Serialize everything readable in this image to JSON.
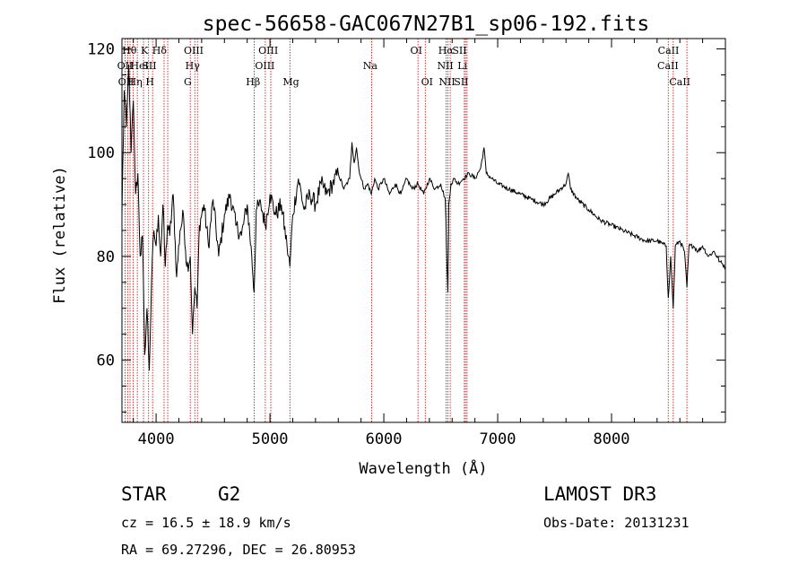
{
  "chart_data": {
    "type": "line",
    "title": "spec-56658-GAC067N27B1_sp06-192.fits",
    "xlabel": "Wavelength (Å)",
    "ylabel": "Flux (relative)",
    "xlim": [
      3700,
      9000
    ],
    "ylim": [
      48,
      122
    ],
    "xticks": [
      4000,
      5000,
      6000,
      7000,
      8000
    ],
    "yticks": [
      60,
      80,
      100,
      120
    ],
    "x_minor_step": 200,
    "y_minor_step": 5,
    "spectrum": {
      "name": "flux",
      "x": [
        3700,
        3720,
        3740,
        3760,
        3780,
        3800,
        3820,
        3840,
        3860,
        3880,
        3900,
        3920,
        3940,
        3960,
        3980,
        4000,
        4020,
        4040,
        4060,
        4080,
        4100,
        4120,
        4150,
        4180,
        4210,
        4240,
        4270,
        4300,
        4320,
        4340,
        4360,
        4380,
        4420,
        4460,
        4500,
        4550,
        4600,
        4650,
        4700,
        4750,
        4800,
        4840,
        4861,
        4880,
        4920,
        4960,
        5000,
        5050,
        5100,
        5150,
        5175,
        5200,
        5250,
        5300,
        5350,
        5400,
        5450,
        5500,
        5550,
        5600,
        5650,
        5700,
        5720,
        5740,
        5760,
        5780,
        5800,
        5830,
        5860,
        5890,
        5920,
        5950,
        6000,
        6050,
        6100,
        6150,
        6200,
        6250,
        6300,
        6350,
        6400,
        6450,
        6500,
        6540,
        6555,
        6563,
        6570,
        6590,
        6620,
        6650,
        6700,
        6750,
        6800,
        6850,
        6880,
        6900,
        6950,
        7000,
        7100,
        7200,
        7300,
        7400,
        7500,
        7600,
        7620,
        7640,
        7700,
        7800,
        7900,
        8000,
        8100,
        8200,
        8300,
        8400,
        8480,
        8498,
        8520,
        8542,
        8560,
        8600,
        8640,
        8662,
        8680,
        8720,
        8760,
        8800,
        8850,
        8900,
        8950,
        9000
      ],
      "y": [
        88,
        112,
        105,
        117,
        100,
        110,
        92,
        96,
        80,
        84,
        61,
        70,
        58,
        75,
        85,
        82,
        88,
        80,
        90,
        78,
        86,
        84,
        92,
        76,
        85,
        88,
        78,
        80,
        65,
        74,
        70,
        86,
        90,
        82,
        91,
        80,
        88,
        92,
        86,
        84,
        90,
        80,
        73,
        89,
        90,
        86,
        92,
        88,
        90,
        82,
        78,
        88,
        95,
        89,
        92,
        90,
        94,
        92,
        94,
        96,
        93,
        95,
        102,
        98,
        101,
        97,
        95,
        93,
        94,
        92,
        95,
        93,
        95,
        92,
        94,
        92,
        95,
        93,
        94,
        92,
        95,
        93,
        94,
        91,
        78,
        73,
        90,
        94,
        95,
        94,
        95,
        96,
        95,
        97,
        101,
        96,
        95,
        94,
        93,
        92,
        91,
        90,
        92,
        94,
        96,
        93,
        91,
        89,
        87,
        86,
        85,
        84,
        83,
        83,
        82,
        72,
        80,
        70,
        82,
        83,
        81,
        74,
        82,
        82,
        81,
        82,
        80,
        81,
        79,
        78
      ]
    },
    "line_markers": [
      {
        "x": 3727,
        "label": "OII",
        "row": 2,
        "label_x": 3727
      },
      {
        "x": 3750,
        "label": "Hθ",
        "row": 1,
        "label_x": 3765
      },
      {
        "x": 3771,
        "label": "OII",
        "row": 3,
        "label_x": 3735
      },
      {
        "x": 3798,
        "label": "Hη",
        "row": 3,
        "label_x": 3815
      },
      {
        "x": 3835,
        "label": "HeI",
        "row": 2,
        "label_x": 3855
      },
      {
        "x": 3889,
        "label": "SII",
        "row": 2,
        "label_x": 3940
      },
      {
        "x": 3934,
        "label": "K",
        "row": 1,
        "label_x": 3898
      },
      {
        "x": 3969,
        "label": "H",
        "row": 3,
        "label_x": 3945
      },
      {
        "x": 4070,
        "label": "",
        "row": 0,
        "label_x": 4070
      },
      {
        "x": 4102,
        "label": "Hδ",
        "row": 1,
        "label_x": 4030
      },
      {
        "x": 4300,
        "label": "G",
        "row": 3,
        "label_x": 4278
      },
      {
        "x": 4340,
        "label": "Hγ",
        "row": 2,
        "label_x": 4320
      },
      {
        "x": 4363,
        "label": "OIII",
        "row": 1,
        "label_x": 4330
      },
      {
        "x": 4861,
        "label": "Hβ",
        "row": 3,
        "label_x": 4852
      },
      {
        "x": 4959,
        "label": "OIII",
        "row": 2,
        "label_x": 4955
      },
      {
        "x": 5007,
        "label": "OIII",
        "row": 1,
        "label_x": 4985
      },
      {
        "x": 5175,
        "label": "Mg",
        "row": 3,
        "label_x": 5185
      },
      {
        "x": 5893,
        "label": "Na",
        "row": 2,
        "label_x": 5880
      },
      {
        "x": 6300,
        "label": "OI",
        "row": 1,
        "label_x": 6285
      },
      {
        "x": 6364,
        "label": "OI",
        "row": 3,
        "label_x": 6380
      },
      {
        "x": 6548,
        "label": "NII",
        "row": 2,
        "label_x": 6540
      },
      {
        "x": 6563,
        "label": "Hα",
        "row": 1,
        "label_x": 6545
      },
      {
        "x": 6583,
        "label": "NII",
        "row": 3,
        "label_x": 6555
      },
      {
        "x": 6707,
        "label": "Li",
        "row": 2,
        "label_x": 6690
      },
      {
        "x": 6717,
        "label": "SII",
        "row": 1,
        "label_x": 6665
      },
      {
        "x": 6731,
        "label": "SII",
        "row": 3,
        "label_x": 6680
      },
      {
        "x": 8498,
        "label": "CaII",
        "row": 2,
        "label_x": 8495
      },
      {
        "x": 8542,
        "label": "CaII",
        "row": 1,
        "label_x": 8500
      },
      {
        "x": 8662,
        "label": "CaII",
        "row": 3,
        "label_x": 8600
      }
    ]
  },
  "info": {
    "class": "STAR",
    "subclass": "G2",
    "survey": "LAMOST DR3",
    "cz": "cz = 16.5 ± 18.9 km/s",
    "obs_date": "Obs-Date: 20131231",
    "coords": "RA =  69.27296, DEC =  26.80953"
  },
  "colors": {
    "axis": "#000000",
    "spectrum": "#000000",
    "marker": "#cc0000",
    "background": "#ffffff"
  }
}
